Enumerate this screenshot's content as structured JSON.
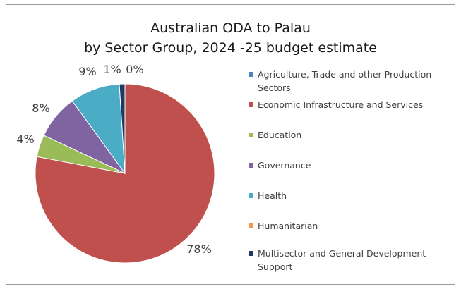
{
  "chart_data": {
    "type": "pie",
    "title": "Australian ODA to  Palau",
    "subtitle": "by Sector Group, 2024 -25 budget estimate",
    "slices": [
      {
        "label": "Agriculture, Trade and other Production Sectors",
        "value": 0,
        "display": "",
        "color": "#4f81bd"
      },
      {
        "label": "Economic Infrastructure and Services",
        "value": 78,
        "display": "78%",
        "color": "#c0504d"
      },
      {
        "label": "Education",
        "value": 4,
        "display": "4%",
        "color": "#9bbb59"
      },
      {
        "label": "Governance",
        "value": 8,
        "display": "8%",
        "color": "#8064a2"
      },
      {
        "label": "Health",
        "value": 9,
        "display": "9%",
        "color": "#4bacc6"
      },
      {
        "label": "Humanitarian",
        "value": 0,
        "display": "",
        "color": "#f79646"
      },
      {
        "label": "Multisector and General Development Support",
        "value": 1,
        "display": "1%",
        "color": "#1f3864"
      }
    ],
    "extra_labels": [
      "0%"
    ],
    "legend_position": "right"
  }
}
